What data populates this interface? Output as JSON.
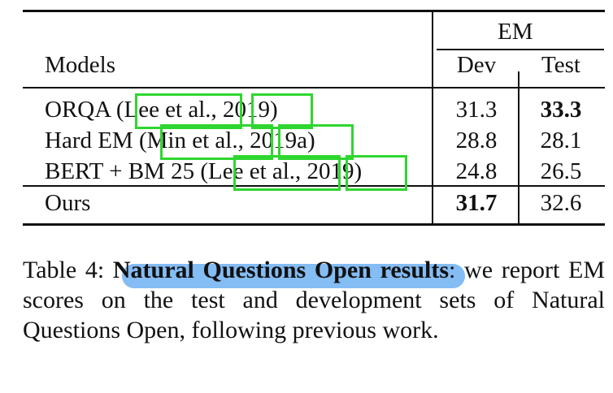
{
  "table": {
    "group_header": "EM",
    "columns": [
      "Models",
      "Dev",
      "Test"
    ],
    "rows": [
      {
        "model": "ORQA (Lee et al., 2019)",
        "dev": "31.3",
        "test": "33.3",
        "bold": "test"
      },
      {
        "model": "Hard EM (Min et al., 2019a)",
        "dev": "28.8",
        "test": "28.1",
        "bold": ""
      },
      {
        "model": "BERT + BM 25 (Lee et al., 2019)",
        "dev": "24.8",
        "test": "26.5",
        "bold": ""
      },
      {
        "model": "Ours",
        "dev": "31.7",
        "test": "32.6",
        "bold": "dev"
      }
    ]
  },
  "caption": {
    "label": "Table 4:",
    "title": "Natural Questions Open results",
    "body": ": we report EM scores on the test and development sets of Natural Questions Open, following previous work."
  },
  "colors": {
    "citation_box": "#2fd62f",
    "highlight": "#6fb0f2"
  }
}
